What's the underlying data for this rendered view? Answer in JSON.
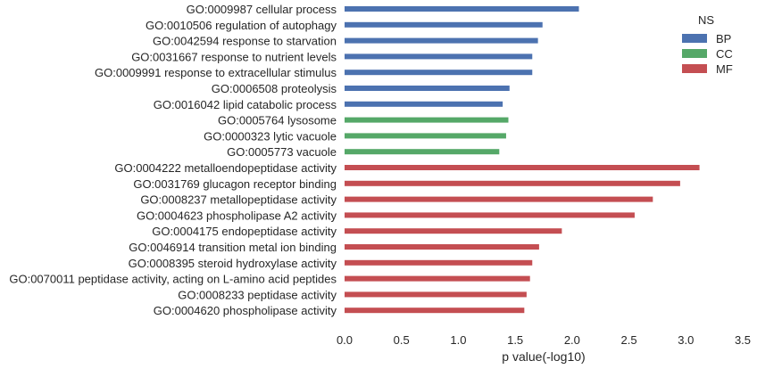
{
  "chart_data": {
    "type": "bar",
    "orientation": "horizontal",
    "xlabel": "p value(-log10)",
    "ylabel": "",
    "xlim": [
      0,
      3.5
    ],
    "xticks": [
      "0.0",
      "0.5",
      "1.0",
      "1.5",
      "2.0",
      "2.5",
      "3.0",
      "3.5"
    ],
    "grid": false,
    "legend": {
      "title": "NS",
      "position": "top-right",
      "entries": [
        {
          "name": "BP",
          "color": "#4c72b0"
        },
        {
          "name": "CC",
          "color": "#55a868"
        },
        {
          "name": "MF",
          "color": "#c44e52"
        }
      ]
    },
    "categories": [
      "GO:0009987 cellular process",
      "GO:0010506 regulation of autophagy",
      "GO:0042594 response to starvation",
      "GO:0031667 response to nutrient levels",
      "GO:0009991 response to extracellular stimulus",
      "GO:0006508 proteolysis",
      "GO:0016042 lipid catabolic process",
      "GO:0005764 lysosome",
      "GO:0000323 lytic vacuole",
      "GO:0005773 vacuole",
      "GO:0004222 metalloendopeptidase activity",
      "GO:0031769 glucagon receptor binding",
      "GO:0008237 metallopeptidase activity",
      "GO:0004623 phospholipase A2 activity",
      "GO:0004175 endopeptidase activity",
      "GO:0046914 transition metal ion binding",
      "GO:0008395 steroid hydroxylase activity",
      "GO:0070011 peptidase activity, acting on L-amino acid peptides",
      "GO:0008233 peptidase activity",
      "GO:0004620 phospholipase activity"
    ],
    "groups": [
      "BP",
      "BP",
      "BP",
      "BP",
      "BP",
      "BP",
      "BP",
      "CC",
      "CC",
      "CC",
      "MF",
      "MF",
      "MF",
      "MF",
      "MF",
      "MF",
      "MF",
      "MF",
      "MF",
      "MF"
    ],
    "values": [
      2.06,
      1.74,
      1.7,
      1.65,
      1.65,
      1.45,
      1.39,
      1.44,
      1.42,
      1.36,
      3.12,
      2.95,
      2.71,
      2.55,
      1.91,
      1.71,
      1.65,
      1.63,
      1.6,
      1.58
    ]
  }
}
